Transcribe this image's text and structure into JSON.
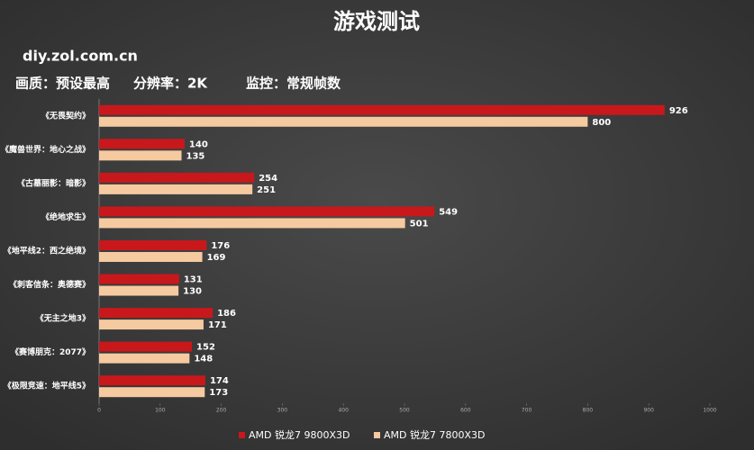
{
  "chart_data": {
    "type": "bar",
    "orientation": "horizontal",
    "title": "游戏测试",
    "watermark": "diy.zol.com.cn",
    "annotations": [
      "画质：预设最高",
      "分辨率：2K",
      "监控：常规帧数"
    ],
    "categories": [
      "《无畏契约》",
      "《魔兽世界：地心之战》",
      "《古墓丽影：暗影》",
      "《绝地求生》",
      "《地平线2：西之绝境》",
      "《刺客信条：奥德赛》",
      "《无主之地3》",
      "《赛博朋克：2077》",
      "《极限竞速：地平线5》"
    ],
    "series": [
      {
        "name": "AMD 锐龙7 9800X3D",
        "color": "#c8181c",
        "values": [
          926,
          140,
          254,
          549,
          176,
          131,
          186,
          152,
          174
        ]
      },
      {
        "name": "AMD 锐龙7 7800X3D",
        "color": "#f6caa0",
        "values": [
          800,
          135,
          251,
          501,
          169,
          130,
          171,
          148,
          173
        ]
      }
    ],
    "xlim": [
      0,
      1000
    ],
    "xticks": [
      0,
      100,
      200,
      300,
      400,
      500,
      600,
      700,
      800,
      900,
      1000
    ],
    "grid": false,
    "legend": "bottom"
  }
}
